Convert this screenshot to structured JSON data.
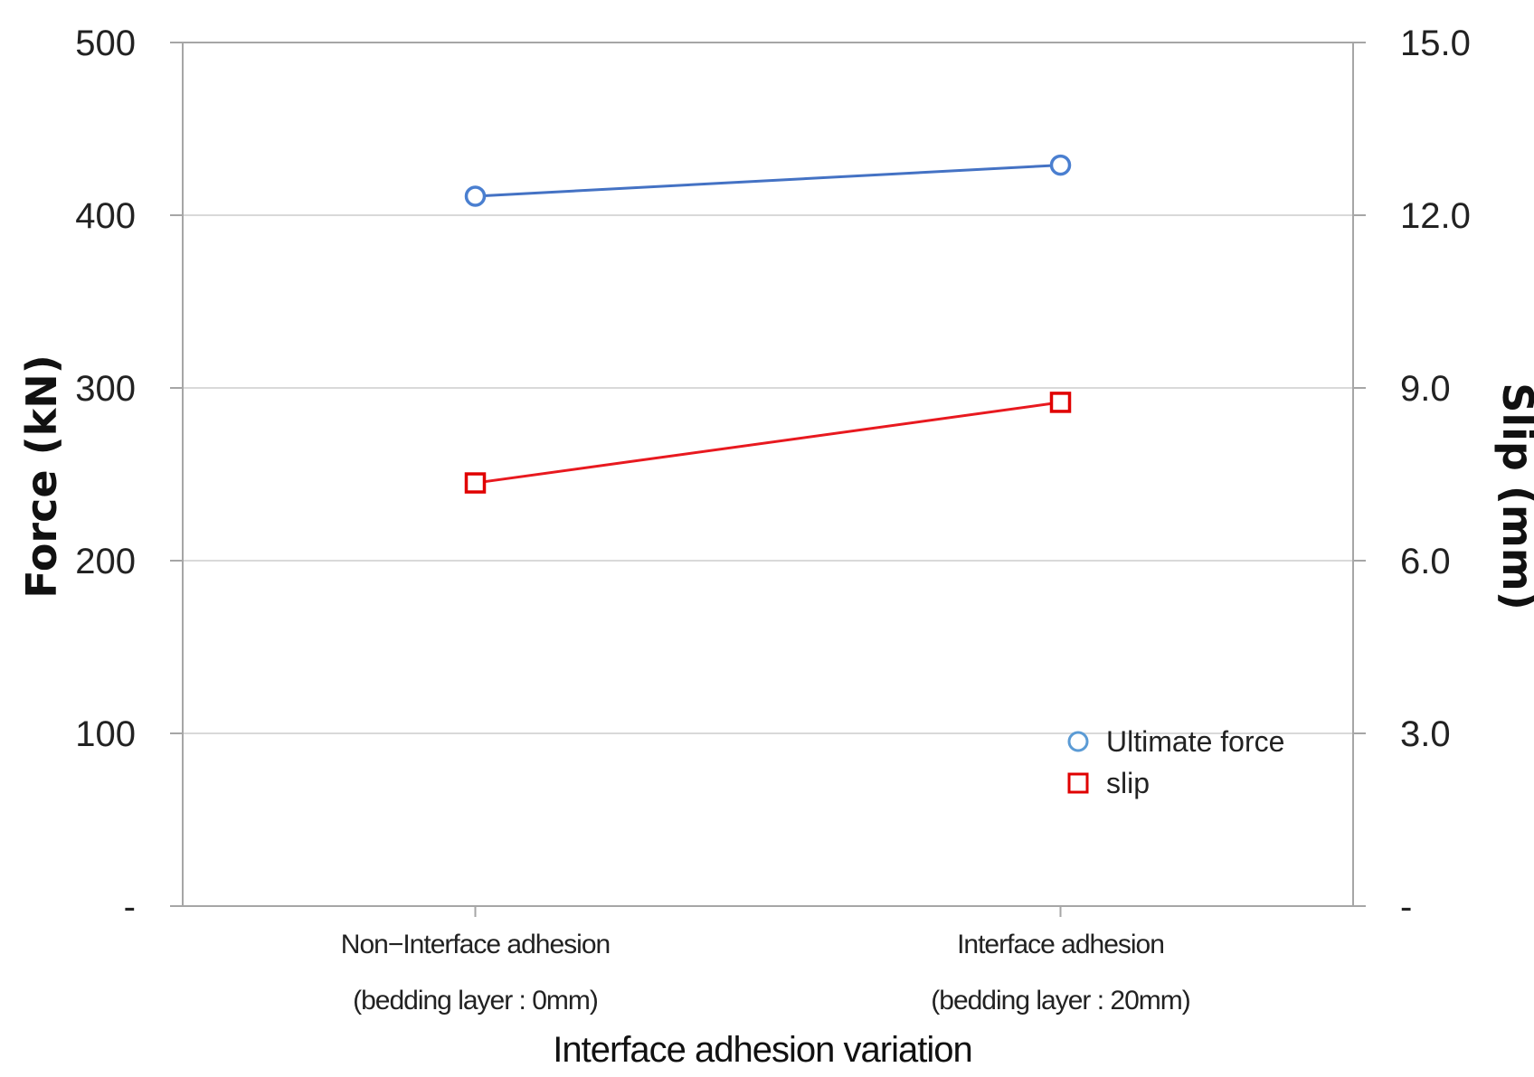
{
  "chart_data": {
    "type": "line",
    "categories": [
      [
        "Non−Interface adhesion",
        "(bedding layer : 0mm)"
      ],
      [
        "Interface adhesion",
        "(bedding layer : 20mm)"
      ]
    ],
    "xlabel": "Interface adhesion variation",
    "ylabel": "Force (kN)",
    "y2label": "Slip (mm)",
    "ylim": [
      0,
      500
    ],
    "y2lim": [
      0,
      15
    ],
    "yticks": [
      "-",
      "100",
      "200",
      "300",
      "400",
      "500"
    ],
    "y2ticks": [
      "-",
      "3.0",
      "6.0",
      "9.0",
      "12.0",
      "15.0"
    ],
    "grid": true,
    "legend_position": "bottom-right",
    "series": [
      {
        "name": "Ultimate force",
        "axis": "left",
        "marker": "circle",
        "color": "#4472c4",
        "marker_color": "#4a7fd0",
        "values": [
          411,
          429
        ]
      },
      {
        "name": "slip",
        "axis": "right",
        "marker": "square",
        "color": "#e8191f",
        "marker_color": "#e00000",
        "values": [
          7.35,
          8.75
        ]
      }
    ]
  }
}
